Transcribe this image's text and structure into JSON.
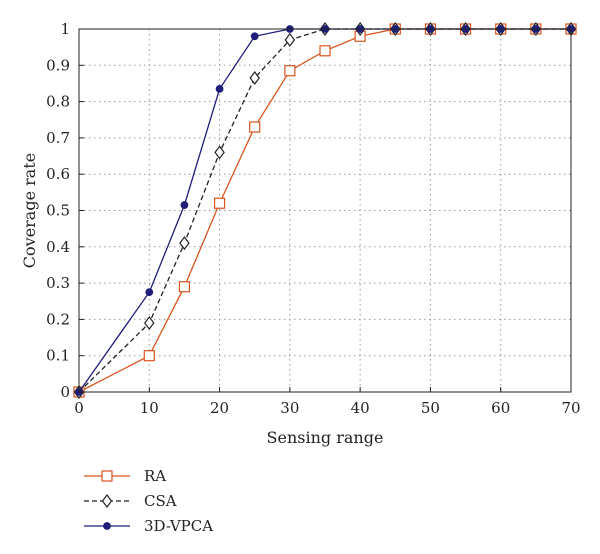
{
  "chart_data": {
    "type": "line",
    "xlabel": "Sensing range",
    "ylabel": "Coverage rate",
    "xlim": [
      0,
      70
    ],
    "ylim": [
      0,
      1
    ],
    "xticks": [
      0,
      10,
      20,
      30,
      40,
      50,
      60,
      70
    ],
    "yticks": [
      0,
      0.1,
      0.2,
      0.3,
      0.4,
      0.5,
      0.6,
      0.7,
      0.8,
      0.9,
      1
    ],
    "grid": true,
    "legend_position": "bottom-left",
    "x": [
      0,
      10,
      15,
      20,
      25,
      30,
      35,
      40,
      45,
      50,
      55,
      60,
      65,
      70
    ],
    "series": [
      {
        "name": "RA",
        "color": "#d9541e",
        "marker": "square",
        "line_style": "solid",
        "values": [
          0,
          0.1,
          0.29,
          0.52,
          0.73,
          0.885,
          0.94,
          0.98,
          1,
          1,
          1,
          1,
          1,
          1
        ]
      },
      {
        "name": "CSA",
        "color": "#222222",
        "marker": "diamond",
        "line_style": "dashed",
        "values": [
          0,
          0.19,
          0.41,
          0.66,
          0.865,
          0.97,
          1,
          1,
          1,
          1,
          1,
          1,
          1,
          1
        ]
      },
      {
        "name": "3D-VPCA",
        "color": "#1f1f7a",
        "marker": "circle",
        "line_style": "solid",
        "values": [
          0,
          0.275,
          0.515,
          0.835,
          0.98,
          1,
          1,
          1,
          1,
          1,
          1,
          1,
          1,
          1
        ]
      }
    ]
  }
}
